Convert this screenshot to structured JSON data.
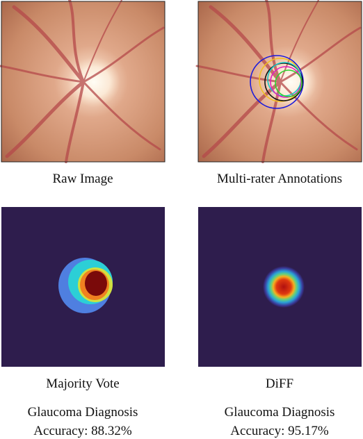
{
  "panels": [
    {
      "caption": "Raw Image"
    },
    {
      "caption": "Multi-rater Annotations"
    },
    {
      "caption": "Majority Vote",
      "result": {
        "title": "Glaucoma Diagnosis",
        "accuracy": "Accuracy: 88.32%"
      }
    },
    {
      "caption": "DiFF",
      "result": {
        "title": "Glaucoma Diagnosis",
        "accuracy": "Accuracy: 95.17%"
      }
    }
  ]
}
